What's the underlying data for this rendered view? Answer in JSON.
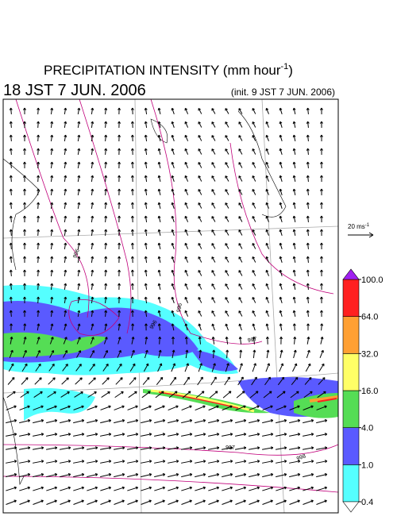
{
  "title": {
    "text": "PRECIPITATION INTENSITY (mm hour",
    "superscript": "-1",
    "closing": ")"
  },
  "valid_time": "18 JST 7 JUN. 2006",
  "init_time": "(init. 9 JST 7 JUN. 2006)",
  "vector_scale": {
    "text": "20 ms",
    "superscript": "-1"
  },
  "colorbar": {
    "levels": [
      0.4,
      {
        "value": 1,
        "label": "1.0"
      },
      {
        "value": 4,
        "label": "4.0"
      },
      {
        "value": 16,
        "label": "16.0"
      },
      {
        "value": 32,
        "label": "32.0"
      },
      {
        "value": 64,
        "label": "64.0"
      },
      {
        "value": 100,
        "label": "100.0"
      }
    ],
    "colors": [
      "#55ffff",
      "#5a5aff",
      "#55dd55",
      "#ffff66",
      "#ffa033",
      "#ff2020"
    ],
    "over_color": "#a020f0",
    "under_color": "#ffffff"
  },
  "contour_labels": [
    "996",
    "996",
    "996",
    "997",
    "997",
    "998"
  ]
}
